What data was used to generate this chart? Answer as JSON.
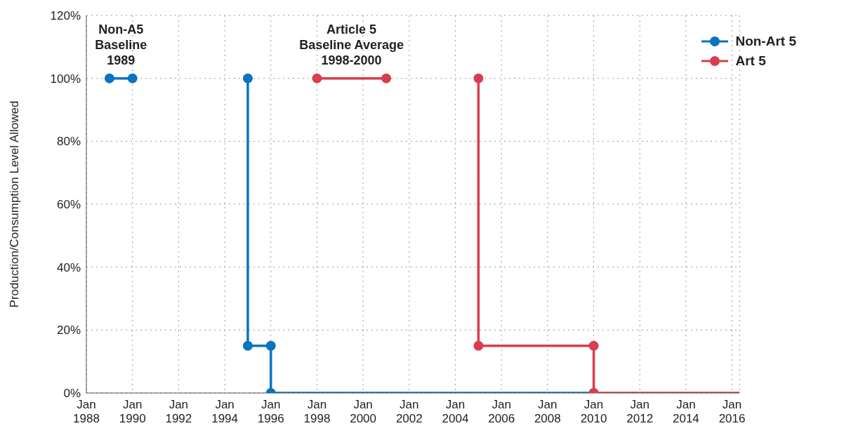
{
  "chart_data": {
    "type": "line",
    "ylabel": "Production/Consumption Level Allowed",
    "series": [
      {
        "name": "Non-Art 5",
        "color": "#0a74c0",
        "x": [
          "1989-01",
          "1990-01",
          "1992-06",
          "1995-01",
          "1995-01",
          "1996-01",
          "1996-01",
          "2010-01"
        ],
        "values": [
          100,
          100,
          null,
          100,
          15,
          15,
          0,
          0
        ]
      },
      {
        "name": "Art 5",
        "color": "#d93d4f",
        "x": [
          "1998-01",
          "2001-01",
          "2003-01",
          "2005-01",
          "2005-01",
          "2010-01",
          "2010-01",
          "2016-05"
        ],
        "values": [
          100,
          100,
          null,
          100,
          15,
          15,
          0,
          0
        ]
      }
    ],
    "xlim": [
      "1988-01",
      "2016-05"
    ],
    "xticks": [
      {
        "value": "1988-01",
        "label": "Jan 1988"
      },
      {
        "value": "1990-01",
        "label": "Jan 1990"
      },
      {
        "value": "1992-01",
        "label": "Jan 1992"
      },
      {
        "value": "1994-01",
        "label": "Jan 1994"
      },
      {
        "value": "1996-01",
        "label": "Jan 1996"
      },
      {
        "value": "1998-01",
        "label": "Jan 1998"
      },
      {
        "value": "2000-01",
        "label": "Jan 2000"
      },
      {
        "value": "2002-01",
        "label": "Jan 2002"
      },
      {
        "value": "2004-01",
        "label": "Jan 2004"
      },
      {
        "value": "2006-01",
        "label": "Jan 2006"
      },
      {
        "value": "2008-01",
        "label": "Jan 2008"
      },
      {
        "value": "2010-01",
        "label": "Jan 2010"
      },
      {
        "value": "2012-01",
        "label": "Jan 2012"
      },
      {
        "value": "2014-01",
        "label": "Jan 2014"
      },
      {
        "value": "2016-01",
        "label": "Jan 2016"
      }
    ],
    "ylim": [
      0,
      120
    ],
    "yticks": [
      {
        "value": 0,
        "label": "0%"
      },
      {
        "value": 20,
        "label": "20%"
      },
      {
        "value": 40,
        "label": "40%"
      },
      {
        "value": 60,
        "label": "60%"
      },
      {
        "value": 80,
        "label": "80%"
      },
      {
        "value": 100,
        "label": "100%"
      },
      {
        "value": 120,
        "label": "120%"
      }
    ],
    "annotations": [
      {
        "text": "Non-A5\nBaseline\n1989",
        "x": "1989-07",
        "y": 100
      },
      {
        "text": "Article 5\nBaseline Average\n1998-2000",
        "x": "1999-07",
        "y": 100
      }
    ],
    "grid": true,
    "legend": "top right",
    "marker": "circle",
    "line_style": "solid"
  }
}
